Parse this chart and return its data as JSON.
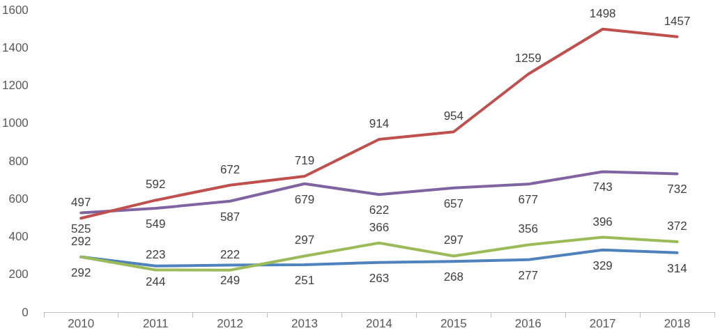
{
  "chart_data": {
    "type": "line",
    "categories": [
      "2010",
      "2011",
      "2012",
      "2013",
      "2014",
      "2015",
      "2016",
      "2017",
      "2018"
    ],
    "series": [
      {
        "color": "#c0504d",
        "values": [
          497,
          592,
          672,
          719,
          914,
          954,
          1259,
          1498,
          1457
        ]
      },
      {
        "color": "#8064a2",
        "values": [
          525,
          549,
          587,
          679,
          622,
          657,
          677,
          743,
          732
        ]
      },
      {
        "color": "#9bbb59",
        "values": [
          292,
          223,
          222,
          297,
          366,
          297,
          356,
          396,
          372
        ]
      },
      {
        "color": "#4f81bd",
        "values": [
          292,
          244,
          249,
          251,
          263,
          268,
          277,
          329,
          314
        ]
      }
    ],
    "ylim": [
      0,
      1600
    ],
    "yticks": [
      0,
      200,
      400,
      600,
      800,
      1000,
      1200,
      1400,
      1600
    ],
    "data_labels": true,
    "grid": false,
    "marker": "none",
    "line_style": "solid"
  }
}
